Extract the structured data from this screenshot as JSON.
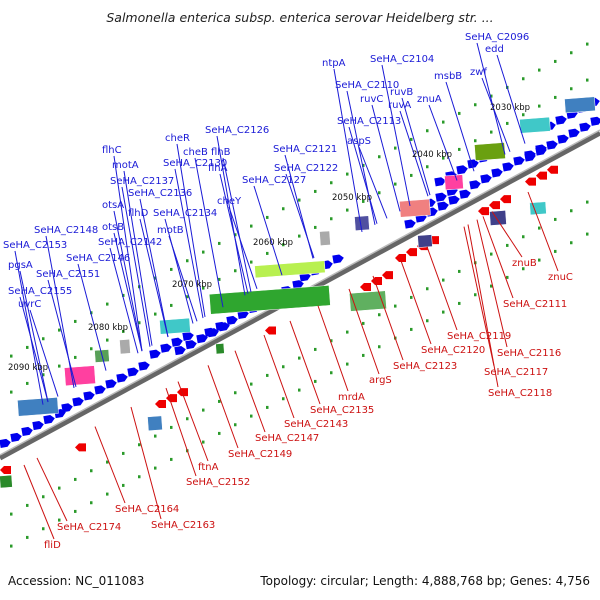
{
  "title": "Salmonella enterica subsp. enterica serovar Heidelberg str. ...",
  "footer": {
    "accession": "Accession: NC_011083",
    "summary": "Topology: circular; Length: 4,888,768 bp; Genes: 4,756"
  },
  "colors": {
    "forward_label": "#1a1ad6",
    "reverse_label": "#cc1111",
    "forward_arrow": "#0000ee",
    "reverse_arrow": "#ee0000",
    "backbone": "#777777"
  },
  "ticks": [
    "2030 kbp",
    "2040 kbp",
    "2050 kbp",
    "2060 kbp",
    "2070 kbp",
    "2080 kbp",
    "2090 kbp"
  ],
  "forward_labels": [
    "edd",
    "SeHA_C2096",
    "zwf",
    "msbB",
    "SeHA_C2104",
    "ntpA",
    "znuA",
    "ruvB",
    "ruvA",
    "SeHA_C2110",
    "ruvC",
    "SeHA_C2113",
    "aspS",
    "SeHA_C2121",
    "SeHA_C2122",
    "SeHA_C2126",
    "cheR",
    "cheB",
    "flhB",
    "flhA",
    "SeHA_C2127",
    "cheY",
    "SeHA_C2130",
    "flhC",
    "motA",
    "SeHA_C2137",
    "SeHA_C2136",
    "flhD",
    "SeHA_C2134",
    "otsA",
    "otsB",
    "motB",
    "SeHA_C2142",
    "SeHA_C2148",
    "SeHA_C2153",
    "SeHA_C2146",
    "pgsA",
    "SeHA_C2151",
    "SeHA_C2155",
    "uvrC"
  ],
  "reverse_labels": [
    "znuC",
    "znuB",
    "SeHA_C2111",
    "SeHA_C2119",
    "SeHA_C2116",
    "SeHA_C2120",
    "SeHA_C2117",
    "SeHA_C2123",
    "SeHA_C2118",
    "argS",
    "mrdA",
    "SeHA_C2135",
    "SeHA_C2143",
    "SeHA_C2147",
    "SeHA_C2149",
    "ftnA",
    "SeHA_C2152",
    "SeHA_C2164",
    "SeHA_C2163",
    "SeHA_C2174",
    "fliD"
  ]
}
